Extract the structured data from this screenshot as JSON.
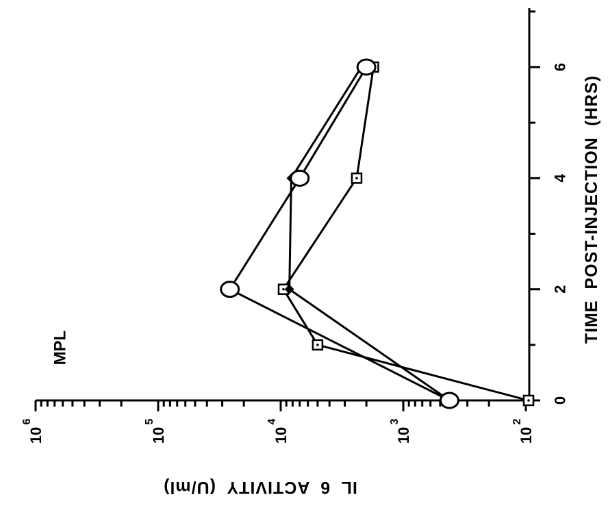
{
  "chart_data": {
    "type": "line",
    "x_axis": {
      "label": "TIME  POST-INJECTION  (HRS)",
      "range": [
        0,
        7
      ],
      "ticks": [
        0,
        2,
        4,
        6
      ],
      "tick_labels": [
        "0",
        "2",
        "4",
        "6"
      ]
    },
    "y_axis": {
      "label": "IL  6  ACTIVITY  (U/ml)",
      "scale": "log",
      "range": [
        100,
        1000000
      ],
      "ticks": [
        100,
        1000,
        10000,
        100000,
        1000000
      ],
      "tick_labels": [
        {
          "base": "10",
          "exp": "2"
        },
        {
          "base": "10",
          "exp": "3"
        },
        {
          "base": "10",
          "exp": "4"
        },
        {
          "base": "10",
          "exp": "5"
        },
        {
          "base": "10",
          "exp": "6"
        }
      ]
    },
    "annotation": "MPL",
    "grid": false,
    "series": [
      {
        "marker": "open-circle",
        "color": "#000000",
        "x": [
          0,
          2,
          4,
          6
        ],
        "y": [
          420,
          26000,
          7000,
          2000
        ]
      },
      {
        "marker": "square-dot",
        "color": "#000000",
        "x": [
          0,
          1,
          2,
          4,
          6
        ],
        "y": [
          95,
          5000,
          9500,
          2400,
          1750
        ]
      },
      {
        "marker": "filled-diamond",
        "color": "#000000",
        "x": [
          0,
          2,
          4,
          6
        ],
        "y": [
          420,
          8500,
          8200,
          2200
        ]
      }
    ]
  }
}
